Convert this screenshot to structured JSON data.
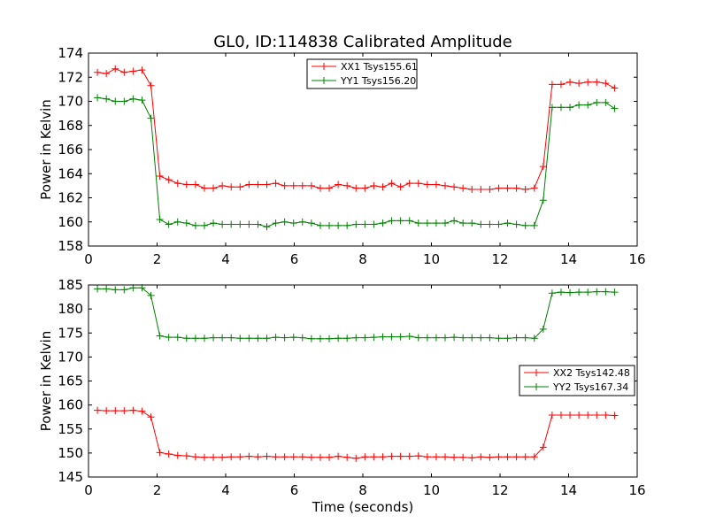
{
  "figure": {
    "title": "GL0, ID:114838 Calibrated Amplitude",
    "xlabel": "Time (seconds)"
  },
  "chart_data": [
    {
      "type": "line",
      "ylabel": "Power in Kelvin",
      "xlim": [
        0,
        16
      ],
      "ylim": [
        158,
        174
      ],
      "xticks": [
        0,
        2,
        4,
        6,
        8,
        10,
        12,
        14,
        16
      ],
      "yticks": [
        158,
        160,
        162,
        164,
        166,
        168,
        170,
        172,
        174
      ],
      "grid": false,
      "legend_position": "top-center",
      "x": [
        0.26,
        0.52,
        0.78,
        1.04,
        1.3,
        1.56,
        1.82,
        2.08,
        2.34,
        2.6,
        2.86,
        3.12,
        3.38,
        3.64,
        3.9,
        4.16,
        4.42,
        4.68,
        4.94,
        5.2,
        5.46,
        5.72,
        5.98,
        6.24,
        6.5,
        6.76,
        7.02,
        7.28,
        7.54,
        7.8,
        8.06,
        8.32,
        8.58,
        8.84,
        9.1,
        9.36,
        9.62,
        9.88,
        10.14,
        10.4,
        10.66,
        10.92,
        11.18,
        11.44,
        11.7,
        11.96,
        12.22,
        12.48,
        12.74,
        13.0,
        13.26,
        13.52,
        13.78,
        14.04,
        14.3,
        14.56,
        14.82,
        15.08,
        15.34
      ],
      "series": [
        {
          "name": "XX1 Tsys155.61",
          "color": "#ff0000",
          "values": [
            172.4,
            172.3,
            172.7,
            172.4,
            172.5,
            172.6,
            171.3,
            163.8,
            163.5,
            163.2,
            163.1,
            163.1,
            162.8,
            162.8,
            163.0,
            162.9,
            162.9,
            163.1,
            163.1,
            163.1,
            163.2,
            163.0,
            163.0,
            163.0,
            163.0,
            162.8,
            162.8,
            163.1,
            163.0,
            162.8,
            162.8,
            163.0,
            162.9,
            163.2,
            162.9,
            163.2,
            163.2,
            163.1,
            163.1,
            163.0,
            162.9,
            162.8,
            162.7,
            162.7,
            162.7,
            162.8,
            162.8,
            162.8,
            162.7,
            162.8,
            164.6,
            171.4,
            171.4,
            171.6,
            171.5,
            171.6,
            171.6,
            171.5,
            171.1
          ]
        },
        {
          "name": "YY1 Tsys156.20",
          "color": "#008000",
          "values": [
            170.3,
            170.2,
            170.0,
            170.0,
            170.2,
            170.1,
            168.6,
            160.2,
            159.8,
            160.0,
            159.9,
            159.7,
            159.7,
            159.9,
            159.8,
            159.8,
            159.8,
            159.8,
            159.8,
            159.6,
            159.9,
            160.0,
            159.9,
            160.0,
            159.9,
            159.7,
            159.7,
            159.7,
            159.7,
            159.8,
            159.8,
            159.8,
            159.9,
            160.1,
            160.1,
            160.1,
            159.9,
            159.9,
            159.9,
            159.9,
            160.1,
            159.9,
            159.9,
            159.8,
            159.8,
            159.8,
            159.9,
            159.8,
            159.7,
            159.7,
            161.8,
            169.5,
            169.5,
            169.5,
            169.7,
            169.7,
            169.9,
            169.9,
            169.4
          ]
        }
      ]
    },
    {
      "type": "line",
      "ylabel": "Power in Kelvin",
      "xlim": [
        0,
        16
      ],
      "ylim": [
        145,
        185
      ],
      "xticks": [
        0,
        2,
        4,
        6,
        8,
        10,
        12,
        14,
        16
      ],
      "yticks": [
        145,
        150,
        155,
        160,
        165,
        170,
        175,
        180,
        185
      ],
      "grid": false,
      "legend_position": "right",
      "x": [
        0.26,
        0.52,
        0.78,
        1.04,
        1.3,
        1.56,
        1.82,
        2.08,
        2.34,
        2.6,
        2.86,
        3.12,
        3.38,
        3.64,
        3.9,
        4.16,
        4.42,
        4.68,
        4.94,
        5.2,
        5.46,
        5.72,
        5.98,
        6.24,
        6.5,
        6.76,
        7.02,
        7.28,
        7.54,
        7.8,
        8.06,
        8.32,
        8.58,
        8.84,
        9.1,
        9.36,
        9.62,
        9.88,
        10.14,
        10.4,
        10.66,
        10.92,
        11.18,
        11.44,
        11.7,
        11.96,
        12.22,
        12.48,
        12.74,
        13.0,
        13.26,
        13.52,
        13.78,
        14.04,
        14.3,
        14.56,
        14.82,
        15.08,
        15.34
      ],
      "series": [
        {
          "name": "XX2 Tsys142.48",
          "color": "#ff0000",
          "values": [
            158.9,
            158.8,
            158.8,
            158.8,
            158.9,
            158.7,
            157.5,
            150.1,
            149.8,
            149.5,
            149.4,
            149.2,
            149.1,
            149.1,
            149.1,
            149.2,
            149.2,
            149.3,
            149.2,
            149.3,
            149.2,
            149.2,
            149.2,
            149.2,
            149.1,
            149.1,
            149.1,
            149.3,
            149.1,
            148.9,
            149.2,
            149.2,
            149.2,
            149.3,
            149.3,
            149.3,
            149.4,
            149.2,
            149.2,
            149.2,
            149.1,
            149.1,
            149.0,
            149.2,
            149.1,
            149.2,
            149.2,
            149.2,
            149.2,
            149.2,
            151.2,
            157.9,
            157.9,
            157.9,
            157.9,
            157.9,
            157.9,
            157.9,
            157.8
          ]
        },
        {
          "name": "YY2 Tsys167.34",
          "color": "#008000",
          "values": [
            184.2,
            184.2,
            184.0,
            184.0,
            184.4,
            184.4,
            182.8,
            174.4,
            174.1,
            174.1,
            173.9,
            173.9,
            173.9,
            174.0,
            174.0,
            174.0,
            173.9,
            173.9,
            173.9,
            173.9,
            174.1,
            174.0,
            174.1,
            174.0,
            173.8,
            173.8,
            173.8,
            173.9,
            173.9,
            174.0,
            174.0,
            174.1,
            174.2,
            174.2,
            174.2,
            174.3,
            174.0,
            174.0,
            174.0,
            174.0,
            174.1,
            174.0,
            174.0,
            174.0,
            174.0,
            173.9,
            173.9,
            174.0,
            174.0,
            173.9,
            175.8,
            183.3,
            183.5,
            183.4,
            183.5,
            183.5,
            183.6,
            183.6,
            183.5
          ]
        }
      ]
    }
  ]
}
